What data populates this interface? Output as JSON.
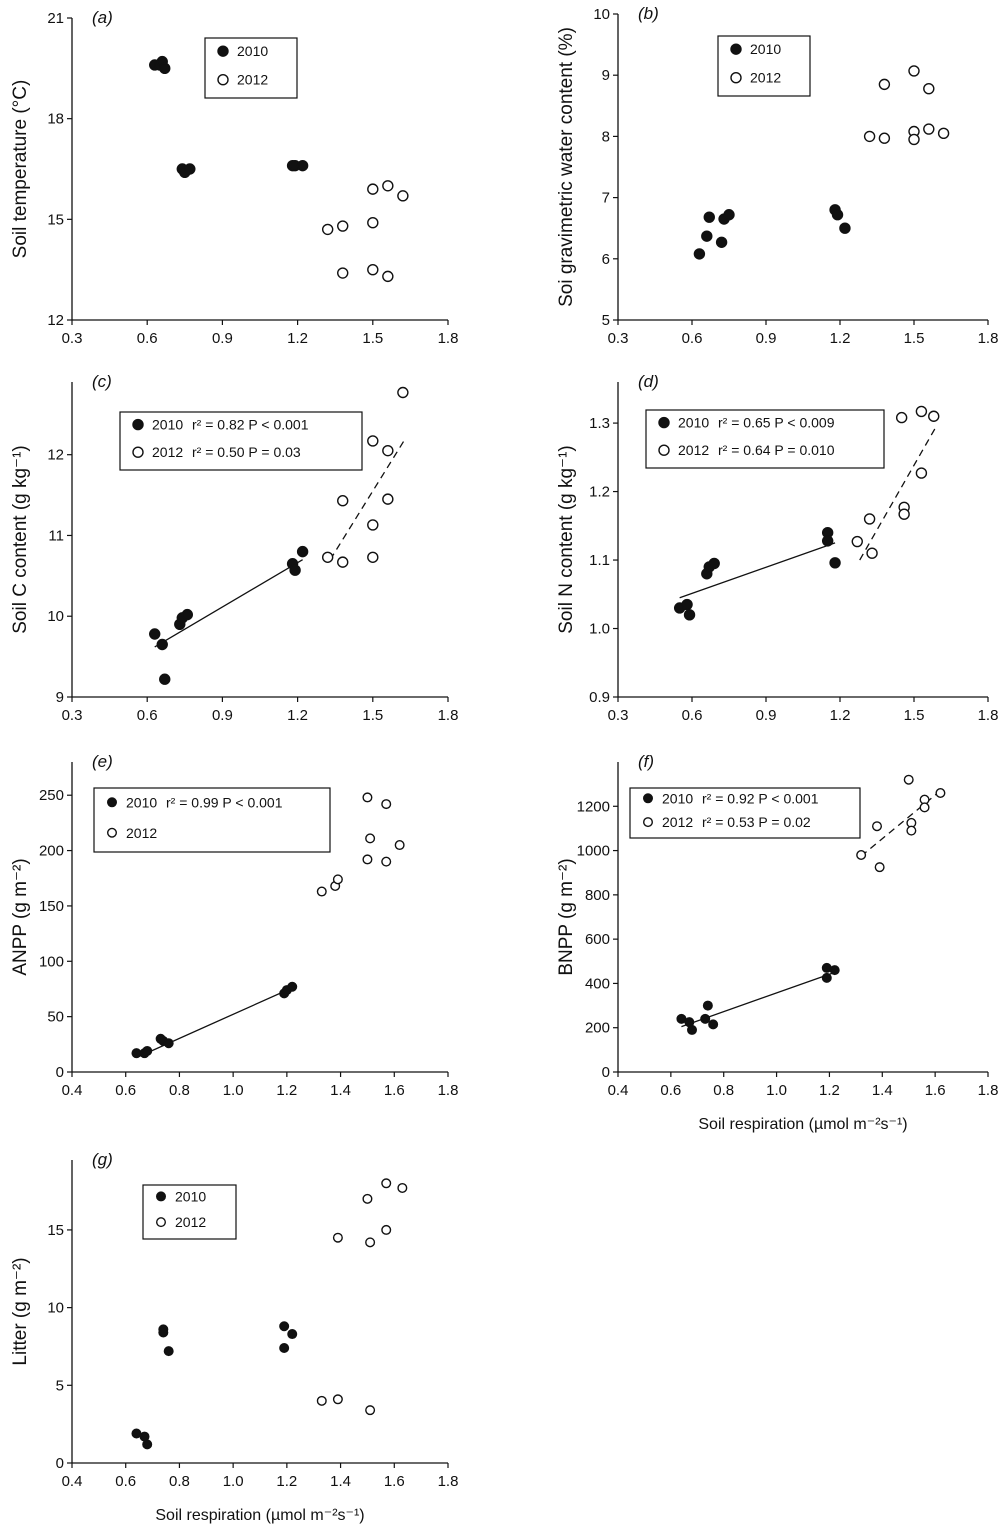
{
  "figure": {
    "x_axis_title": "Soil respiration (µmol m⁻²s⁻¹)"
  },
  "chart_data": [
    {
      "id": "a",
      "type": "scatter",
      "panel_label": "(a)",
      "ylabel": "Soil temperature (°C)",
      "xlim": [
        0.3,
        1.8
      ],
      "ylim": [
        12,
        21
      ],
      "xticks": [
        "0.3",
        "0.6",
        "0.9",
        "1.2",
        "1.5",
        "1.8"
      ],
      "yticks": [
        "12",
        "15",
        "18",
        "21"
      ],
      "grid": false,
      "legend": {
        "placement": "top-center",
        "entries": [
          {
            "marker": "filled",
            "text": "2010"
          },
          {
            "marker": "open",
            "text": "2012"
          }
        ]
      },
      "series": [
        {
          "name": "2010",
          "marker": "filled",
          "points": [
            [
              0.63,
              19.6
            ],
            [
              0.65,
              19.6
            ],
            [
              0.66,
              19.7
            ],
            [
              0.67,
              19.5
            ],
            [
              0.74,
              16.5
            ],
            [
              0.75,
              16.4
            ],
            [
              0.77,
              16.5
            ],
            [
              1.18,
              16.6
            ],
            [
              1.19,
              16.6
            ],
            [
              1.22,
              16.6
            ]
          ]
        },
        {
          "name": "2012",
          "marker": "open",
          "points": [
            [
              1.32,
              14.7
            ],
            [
              1.38,
              14.8
            ],
            [
              1.5,
              15.9
            ],
            [
              1.56,
              16.0
            ],
            [
              1.62,
              15.7
            ],
            [
              1.5,
              14.9
            ],
            [
              1.38,
              13.4
            ],
            [
              1.5,
              13.5
            ],
            [
              1.56,
              13.3
            ]
          ]
        }
      ],
      "xlabel": ""
    },
    {
      "id": "b",
      "type": "scatter",
      "panel_label": "(b)",
      "ylabel": "Soi gravimetric water content (%)",
      "xlim": [
        0.3,
        1.8
      ],
      "ylim": [
        5,
        10
      ],
      "xticks": [
        "0.3",
        "0.6",
        "0.9",
        "1.2",
        "1.5",
        "1.8"
      ],
      "yticks": [
        "5",
        "6",
        "7",
        "8",
        "9",
        "10"
      ],
      "grid": false,
      "legend": {
        "placement": "top-center",
        "entries": [
          {
            "marker": "filled",
            "text": "2010"
          },
          {
            "marker": "open",
            "text": "2012"
          }
        ]
      },
      "series": [
        {
          "name": "2010",
          "marker": "filled",
          "points": [
            [
              0.63,
              6.08
            ],
            [
              0.66,
              6.37
            ],
            [
              0.67,
              6.68
            ],
            [
              0.72,
              6.27
            ],
            [
              0.73,
              6.65
            ],
            [
              0.75,
              6.72
            ],
            [
              1.18,
              6.8
            ],
            [
              1.19,
              6.72
            ],
            [
              1.22,
              6.5
            ]
          ]
        },
        {
          "name": "2012",
          "marker": "open",
          "points": [
            [
              1.32,
              8.0
            ],
            [
              1.38,
              7.97
            ],
            [
              1.38,
              8.85
            ],
            [
              1.5,
              9.07
            ],
            [
              1.5,
              8.08
            ],
            [
              1.5,
              7.95
            ],
            [
              1.56,
              8.78
            ],
            [
              1.56,
              8.12
            ],
            [
              1.62,
              8.05
            ]
          ]
        }
      ],
      "xlabel": ""
    },
    {
      "id": "c",
      "type": "scatter",
      "panel_label": "(c)",
      "ylabel": "Soil C content (g kg⁻¹)",
      "xlim": [
        0.3,
        1.8
      ],
      "ylim": [
        9,
        12.9
      ],
      "xticks": [
        "0.3",
        "0.6",
        "0.9",
        "1.2",
        "1.5",
        "1.8"
      ],
      "yticks": [
        "9",
        "10",
        "11",
        "12"
      ],
      "ytick_values": [
        9,
        10,
        11,
        12
      ],
      "grid": false,
      "legend": {
        "placement": "top-center",
        "entries": [
          {
            "marker": "filled",
            "text": "2010",
            "stats": "r² = 0.82   P < 0.001"
          },
          {
            "marker": "open",
            "text": "2012",
            "stats": "r² = 0.50   P = 0.03"
          }
        ]
      },
      "series": [
        {
          "name": "2010",
          "marker": "filled",
          "points": [
            [
              0.63,
              9.78
            ],
            [
              0.66,
              9.65
            ],
            [
              0.67,
              9.22
            ],
            [
              0.73,
              9.9
            ],
            [
              0.74,
              9.98
            ],
            [
              0.76,
              10.02
            ],
            [
              1.18,
              10.65
            ],
            [
              1.19,
              10.57
            ],
            [
              1.22,
              10.8
            ]
          ]
        },
        {
          "name": "2012",
          "marker": "open",
          "points": [
            [
              1.32,
              10.73
            ],
            [
              1.38,
              11.43
            ],
            [
              1.38,
              10.67
            ],
            [
              1.5,
              12.17
            ],
            [
              1.5,
              11.13
            ],
            [
              1.5,
              10.73
            ],
            [
              1.56,
              12.05
            ],
            [
              1.56,
              11.45
            ],
            [
              1.62,
              12.77
            ]
          ]
        }
      ],
      "trendlines": [
        {
          "series": "2010",
          "style": "solid",
          "from": [
            0.63,
            9.62
          ],
          "to": [
            1.22,
            10.7
          ]
        },
        {
          "series": "2012",
          "style": "dashed",
          "from": [
            1.33,
            10.7
          ],
          "to": [
            1.63,
            12.2
          ]
        }
      ],
      "xlabel": ""
    },
    {
      "id": "d",
      "type": "scatter",
      "panel_label": "(d)",
      "ylabel": "Soil N content (g kg⁻¹)",
      "xlim": [
        0.3,
        1.8
      ],
      "ylim": [
        0.9,
        1.36
      ],
      "xticks": [
        "0.3",
        "0.6",
        "0.9",
        "1.2",
        "1.5",
        "1.8"
      ],
      "yticks": [
        "0.9",
        "1.0",
        "1.1",
        "1.2",
        "1.3"
      ],
      "ytick_values": [
        0.9,
        1.0,
        1.1,
        1.2,
        1.3
      ],
      "grid": false,
      "legend": {
        "placement": "top-center",
        "entries": [
          {
            "marker": "filled",
            "text": "2010",
            "stats": "r² = 0.65   P < 0.009"
          },
          {
            "marker": "open",
            "text": "2012",
            "stats": "r² = 0.64   P = 0.010"
          }
        ]
      },
      "series": [
        {
          "name": "2010",
          "marker": "filled",
          "points": [
            [
              0.55,
              1.03
            ],
            [
              0.58,
              1.035
            ],
            [
              0.59,
              1.02
            ],
            [
              0.66,
              1.08
            ],
            [
              0.67,
              1.09
            ],
            [
              0.69,
              1.095
            ],
            [
              1.15,
              1.14
            ],
            [
              1.15,
              1.128
            ],
            [
              1.18,
              1.096
            ]
          ]
        },
        {
          "name": "2012",
          "marker": "open",
          "points": [
            [
              1.27,
              1.127
            ],
            [
              1.32,
              1.16
            ],
            [
              1.33,
              1.11
            ],
            [
              1.45,
              1.308
            ],
            [
              1.46,
              1.177
            ],
            [
              1.46,
              1.167
            ],
            [
              1.53,
              1.317
            ],
            [
              1.53,
              1.227
            ],
            [
              1.58,
              1.31
            ]
          ]
        }
      ],
      "trendlines": [
        {
          "series": "2010",
          "style": "solid",
          "from": [
            0.55,
            1.045
          ],
          "to": [
            1.18,
            1.125
          ]
        },
        {
          "series": "2012",
          "style": "dashed",
          "from": [
            1.28,
            1.1
          ],
          "to": [
            1.59,
            1.295
          ]
        }
      ],
      "xlabel": ""
    },
    {
      "id": "e",
      "type": "scatter",
      "panel_label": "(e)",
      "ylabel": "ANPP (g m⁻²)",
      "xlim": [
        0.4,
        1.8
      ],
      "ylim": [
        0,
        280
      ],
      "xticks": [
        "0.4",
        "0.6",
        "0.8",
        "1.0",
        "1.2",
        "1.4",
        "1.6",
        "1.8"
      ],
      "yticks": [
        "0",
        "50",
        "100",
        "150",
        "200",
        "250"
      ],
      "ytick_values": [
        0,
        50,
        100,
        150,
        200,
        250
      ],
      "grid": false,
      "legend": {
        "placement": "top-left",
        "entries": [
          {
            "marker": "filled",
            "text": "2010",
            "stats": "r² = 0.99   P < 0.001"
          },
          {
            "marker": "open",
            "text": "2012",
            "stats": ""
          }
        ]
      },
      "series": [
        {
          "name": "2010",
          "marker": "filled",
          "points": [
            [
              0.64,
              17
            ],
            [
              0.67,
              17
            ],
            [
              0.68,
              19
            ],
            [
              0.73,
              30
            ],
            [
              0.74,
              28
            ],
            [
              0.76,
              26
            ],
            [
              1.19,
              71
            ],
            [
              1.2,
              74
            ],
            [
              1.22,
              77
            ]
          ]
        },
        {
          "name": "2012",
          "marker": "open",
          "points": [
            [
              1.33,
              163
            ],
            [
              1.38,
              168
            ],
            [
              1.39,
              174
            ],
            [
              1.5,
              248
            ],
            [
              1.5,
              192
            ],
            [
              1.51,
              211
            ],
            [
              1.57,
              242
            ],
            [
              1.57,
              190
            ],
            [
              1.62,
              205
            ]
          ]
        }
      ],
      "trendlines": [
        {
          "series": "2010",
          "style": "solid",
          "from": [
            0.64,
            13
          ],
          "to": [
            1.22,
            76
          ]
        }
      ],
      "xlabel": ""
    },
    {
      "id": "f",
      "type": "scatter",
      "panel_label": "(f)",
      "ylabel": "BNPP (g m⁻²)",
      "xlim": [
        0.4,
        1.8
      ],
      "ylim": [
        0,
        1400
      ],
      "xticks": [
        "0.4",
        "0.6",
        "0.8",
        "1.0",
        "1.2",
        "1.4",
        "1.6",
        "1.8"
      ],
      "yticks": [
        "0",
        "200",
        "400",
        "600",
        "800",
        "1000",
        "1200"
      ],
      "ytick_values": [
        0,
        200,
        400,
        600,
        800,
        1000,
        1200
      ],
      "grid": false,
      "legend": {
        "placement": "top-left",
        "entries": [
          {
            "marker": "filled",
            "text": "2010",
            "stats": "r² = 0.92   P < 0.001"
          },
          {
            "marker": "open",
            "text": "2012",
            "stats": "r² = 0.53   P = 0.02"
          }
        ]
      },
      "series": [
        {
          "name": "2010",
          "marker": "filled",
          "points": [
            [
              0.64,
              240
            ],
            [
              0.67,
              225
            ],
            [
              0.68,
              190
            ],
            [
              0.73,
              240
            ],
            [
              0.74,
              300
            ],
            [
              0.76,
              215
            ],
            [
              1.19,
              470
            ],
            [
              1.19,
              425
            ],
            [
              1.22,
              460
            ]
          ]
        },
        {
          "name": "2012",
          "marker": "open",
          "points": [
            [
              1.32,
              980
            ],
            [
              1.38,
              1110
            ],
            [
              1.39,
              925
            ],
            [
              1.5,
              1320
            ],
            [
              1.51,
              1125
            ],
            [
              1.51,
              1090
            ],
            [
              1.56,
              1230
            ],
            [
              1.56,
              1195
            ],
            [
              1.62,
              1260
            ]
          ]
        }
      ],
      "trendlines": [
        {
          "series": "2010",
          "style": "solid",
          "from": [
            0.64,
            205
          ],
          "to": [
            1.22,
            450
          ]
        },
        {
          "series": "2012",
          "style": "dashed",
          "from": [
            1.32,
            975
          ],
          "to": [
            1.62,
            1270
          ]
        }
      ],
      "xlabel": "Soil respiration (µmol m⁻²s⁻¹)"
    },
    {
      "id": "g",
      "type": "scatter",
      "panel_label": "(g)",
      "ylabel": "Litter (g m⁻²)",
      "xlim": [
        0.4,
        1.8
      ],
      "ylim": [
        0,
        19.5
      ],
      "xticks": [
        "0.4",
        "0.6",
        "0.8",
        "1.0",
        "1.2",
        "1.4",
        "1.6",
        "1.8"
      ],
      "yticks": [
        "0",
        "5",
        "10",
        "15"
      ],
      "ytick_values": [
        0,
        5,
        10,
        15
      ],
      "grid": false,
      "legend": {
        "placement": "top-left",
        "entries": [
          {
            "marker": "filled",
            "text": "2010"
          },
          {
            "marker": "open",
            "text": "2012"
          }
        ]
      },
      "series": [
        {
          "name": "2010",
          "marker": "filled",
          "points": [
            [
              0.64,
              1.9
            ],
            [
              0.67,
              1.7
            ],
            [
              0.68,
              1.2
            ],
            [
              0.74,
              8.6
            ],
            [
              0.74,
              8.4
            ],
            [
              0.76,
              7.2
            ],
            [
              1.19,
              8.8
            ],
            [
              1.19,
              7.4
            ],
            [
              1.22,
              8.3
            ]
          ]
        },
        {
          "name": "2012",
          "marker": "open",
          "points": [
            [
              1.33,
              4.0
            ],
            [
              1.39,
              4.1
            ],
            [
              1.39,
              14.5
            ],
            [
              1.5,
              17.0
            ],
            [
              1.51,
              14.2
            ],
            [
              1.51,
              3.4
            ],
            [
              1.57,
              18.0
            ],
            [
              1.57,
              15.0
            ],
            [
              1.63,
              17.7
            ]
          ]
        }
      ],
      "xlabel": "Soil respiration (µmol m⁻²s⁻¹)"
    }
  ]
}
